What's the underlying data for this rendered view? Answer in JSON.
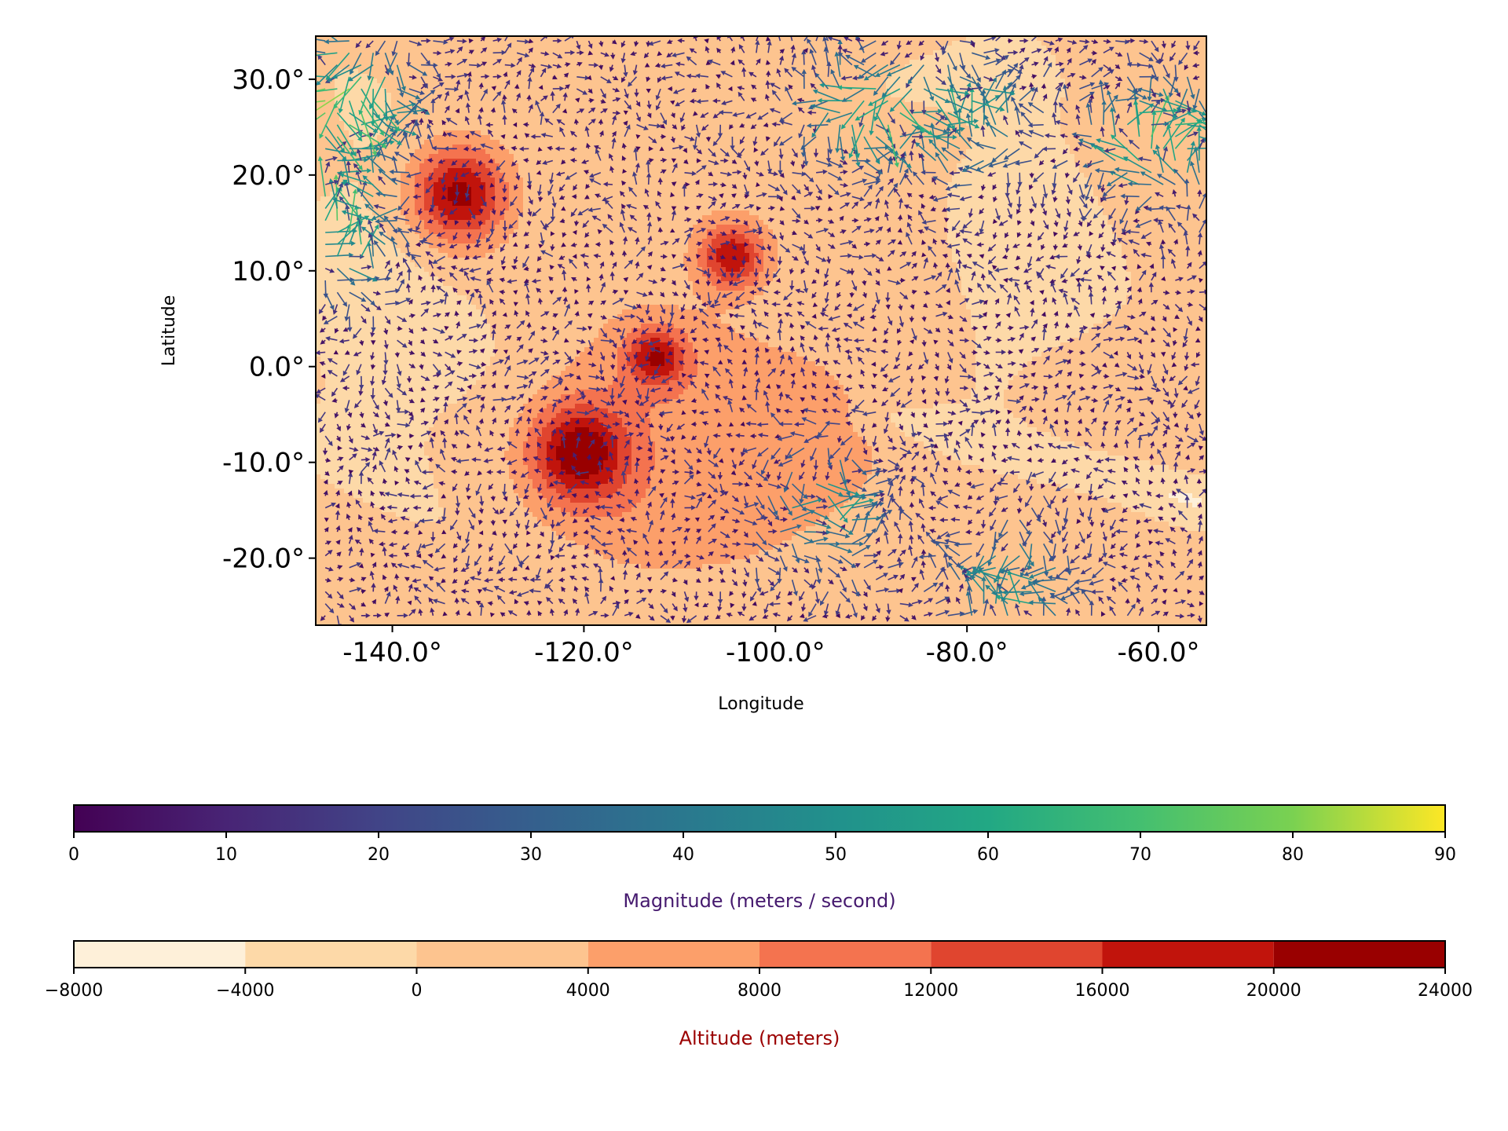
{
  "chart_data": {
    "type": "heatmap",
    "subtype": "filled-contour map with wind vector quiver overlay",
    "title": "",
    "xlabel": "Longitude",
    "ylabel": "Latitude",
    "xlim": [
      -148,
      -55
    ],
    "ylim": [
      -27,
      34.5
    ],
    "x_ticks": [
      -140,
      -120,
      -100,
      -80,
      -60
    ],
    "x_tick_labels": [
      "-140.0°",
      "-120.0°",
      "-100.0°",
      "-80.0°",
      "-60.0°"
    ],
    "y_ticks": [
      30,
      20,
      10,
      0,
      -10,
      -20
    ],
    "y_tick_labels": [
      "30.0°",
      "20.0°",
      "10.0°",
      "0.0°",
      "-10.0°",
      "-20.0°"
    ],
    "altitude_field": {
      "colormap": "OrRd",
      "levels": [
        -8000,
        -4000,
        0,
        4000,
        8000,
        12000,
        16000,
        20000,
        24000
      ],
      "level_colors": [
        "#fef0d9",
        "#fdd9a8",
        "#fdc48f",
        "#fc9f6a",
        "#f4734f",
        "#e0452f",
        "#c1140c",
        "#990000"
      ],
      "features": [
        {
          "kind": "volcano",
          "lon": -133,
          "lat": 18,
          "peak_m": 21000,
          "radius_deg": 5
        },
        {
          "kind": "volcano",
          "lon": -104.5,
          "lat": 11.5,
          "peak_m": 18500,
          "radius_deg": 3.5
        },
        {
          "kind": "volcano",
          "lon": -112.5,
          "lat": 1,
          "peak_m": 15000,
          "radius_deg": 3
        },
        {
          "kind": "volcano",
          "lon": -120.5,
          "lat": -9,
          "peak_m": 19000,
          "radius_deg": 5
        },
        {
          "kind": "plateau",
          "lon": -108,
          "lat": -8,
          "level_m": 5000,
          "radius_lon": 18,
          "radius_lat": 14
        },
        {
          "kind": "canyon",
          "from": [
            -90,
            -5
          ],
          "to": [
            -56,
            -14
          ],
          "level_m": -5000
        }
      ]
    },
    "wind_field": {
      "colormap": "viridis",
      "magnitude_range": [
        0,
        90
      ],
      "fast_wind_regions": [
        {
          "lon": -145,
          "lat": 28,
          "speed": 75
        },
        {
          "lon": -145,
          "lat": 15,
          "speed": 65
        },
        {
          "lon": -90,
          "lat": 27,
          "speed": 55
        },
        {
          "lon": -60,
          "lat": 24,
          "speed": 70
        },
        {
          "lon": -80,
          "lat": 26,
          "speed": 45
        },
        {
          "lon": -95,
          "lat": -15,
          "speed": 45
        },
        {
          "lon": -75,
          "lat": -23,
          "speed": 50
        }
      ]
    },
    "colorbars": [
      {
        "name": "wind-magnitude",
        "label": "Magnitude (meters / second)",
        "label_color": "#45196e",
        "colormap": "viridis",
        "range": [
          0,
          90
        ],
        "ticks": [
          0,
          10,
          20,
          30,
          40,
          50,
          60,
          70,
          80,
          90
        ],
        "tick_labels": [
          "0",
          "10",
          "20",
          "30",
          "40",
          "50",
          "60",
          "70",
          "80",
          "90"
        ]
      },
      {
        "name": "altitude",
        "label": "Altitude (meters)",
        "label_color": "#9b0000",
        "colormap": "OrRd",
        "range": [
          -8000,
          24000
        ],
        "ticks": [
          -8000,
          -4000,
          0,
          4000,
          8000,
          12000,
          16000,
          20000,
          24000
        ],
        "tick_labels": [
          "−8000",
          "−4000",
          "0",
          "4000",
          "8000",
          "12000",
          "16000",
          "20000",
          "24000"
        ]
      }
    ],
    "grid": false,
    "legend": "colorbars below plot"
  }
}
